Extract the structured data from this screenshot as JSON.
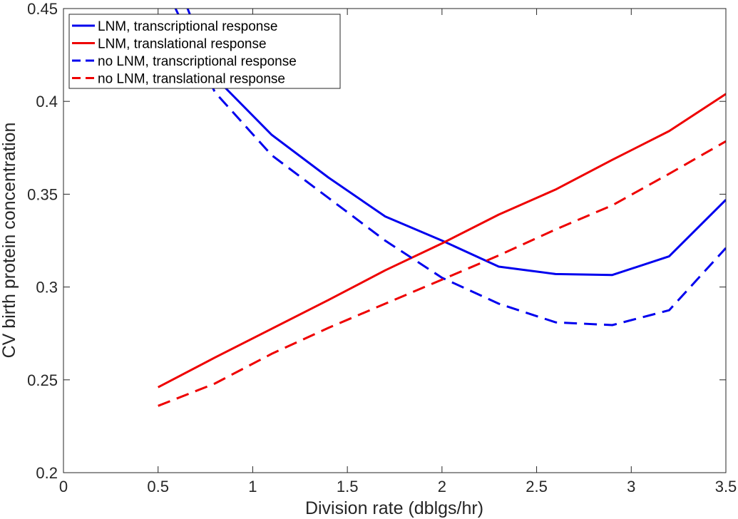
{
  "chart_data": {
    "type": "line",
    "title": "",
    "xlabel": "Division rate (dblgs/hr)",
    "ylabel": "CV birth protein concentration",
    "xlim": [
      0,
      3.5
    ],
    "ylim": [
      0.2,
      0.45
    ],
    "x_ticks": [
      0,
      0.5,
      1,
      1.5,
      2,
      2.5,
      3,
      3.5
    ],
    "x_tick_labels": [
      "0",
      "0.5",
      "1",
      "1.5",
      "2",
      "2.5",
      "3",
      "3.5"
    ],
    "y_ticks": [
      0.2,
      0.25,
      0.3,
      0.35,
      0.4,
      0.45
    ],
    "y_tick_labels": [
      "0.2",
      "0.25",
      "0.3",
      "0.35",
      "0.4",
      "0.45"
    ],
    "grid": false,
    "legend_position": "top-left",
    "series": [
      {
        "name": "LNM, transcriptional response",
        "color": "#0000ee",
        "dash": "solid",
        "x": [
          0.5,
          0.8,
          1.1,
          1.4,
          1.7,
          2.0,
          2.3,
          2.6,
          2.9,
          3.2,
          3.5
        ],
        "y": [
          0.49,
          0.413,
          0.382,
          0.359,
          0.338,
          0.325,
          0.311,
          0.307,
          0.3065,
          0.3165,
          0.347
        ]
      },
      {
        "name": "LNM, translational response",
        "color": "#ee0000",
        "dash": "solid",
        "x": [
          0.5,
          0.8,
          1.1,
          1.4,
          1.7,
          2.0,
          2.3,
          2.6,
          2.9,
          3.2,
          3.5
        ],
        "y": [
          0.246,
          0.262,
          0.2775,
          0.293,
          0.309,
          0.3235,
          0.339,
          0.3525,
          0.3685,
          0.384,
          0.404
        ]
      },
      {
        "name": "no LNM, transcriptional response",
        "color": "#0000ee",
        "dash": "dashed",
        "x": [
          0.5,
          0.8,
          1.1,
          1.4,
          1.7,
          2.0,
          2.3,
          2.6,
          2.9,
          3.2,
          3.5
        ],
        "y": [
          0.47,
          0.405,
          0.371,
          0.348,
          0.325,
          0.305,
          0.291,
          0.281,
          0.2795,
          0.2875,
          0.321
        ]
      },
      {
        "name": "no LNM, translational response",
        "color": "#ee0000",
        "dash": "dashed",
        "x": [
          0.5,
          0.8,
          1.1,
          1.4,
          1.7,
          2.0,
          2.3,
          2.6,
          2.9,
          3.2,
          3.5
        ],
        "y": [
          0.236,
          0.248,
          0.264,
          0.278,
          0.291,
          0.304,
          0.317,
          0.331,
          0.344,
          0.361,
          0.3785
        ]
      }
    ]
  }
}
